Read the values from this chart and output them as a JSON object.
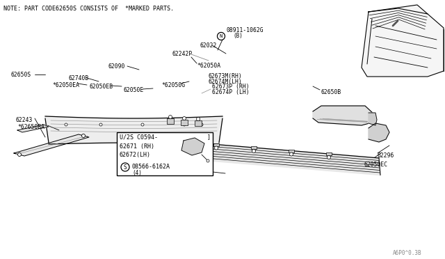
{
  "bg_color": "#ffffff",
  "line_color": "#000000",
  "light_gray": "#bbbbbb",
  "mid_gray": "#888888",
  "dark_gray": "#555555",
  "note_text": "NOTE: PART CODE62650S CONSISTS OF  *MARKED PARTS.",
  "watermark": "A6P0^0.3B",
  "parts": {
    "08911_1062G": "08911-1062G",
    "N_label": "N",
    "B_label": "(B)",
    "62022": "62022",
    "62242P": "62242P",
    "62090": "62090",
    "62296": "62296",
    "62050EC": "62050EC",
    "62740B": "62740B",
    "62050EA": "*62050EA",
    "62050EB": "62050EB",
    "62050E": "62050E",
    "62050G": "*62050G",
    "62673P": "62673P (RH)",
    "62674P": "62674P (LH)",
    "62673M": "62673M(RH)",
    "62674M": "62674M(LH)",
    "62050A": "*62050A",
    "62650B": "62650B",
    "62650S": "62650S",
    "62243": "62243",
    "62650BA": "*62650BA",
    "box_title": "U/2S C0594-",
    "box_end": "]",
    "62671": "62671 (RH)",
    "62672": "62672(LH)",
    "S_label": "S",
    "08566": "08566-6162A",
    "four_label": "(4)"
  }
}
